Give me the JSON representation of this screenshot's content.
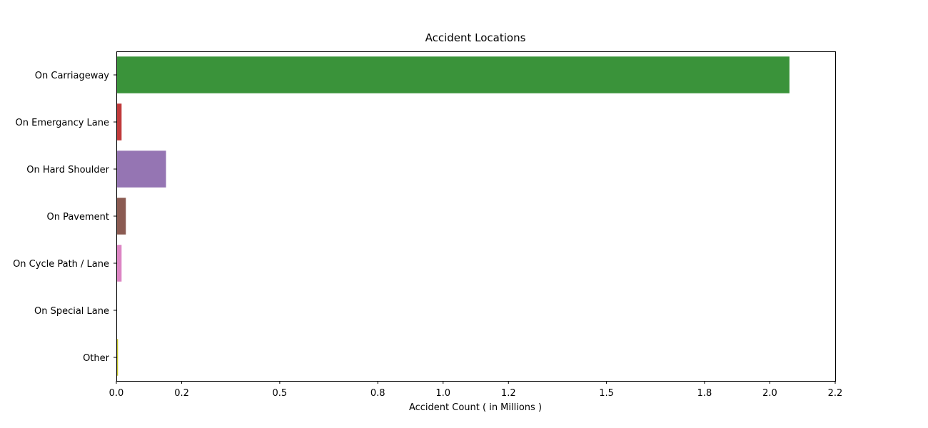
{
  "chart_data": {
    "type": "bar",
    "orientation": "horizontal",
    "title": "Accident Locations",
    "xlabel": "Accident Count ( in Millions )",
    "ylabel": "",
    "xlim": [
      0,
      2.2
    ],
    "x_ticks": [
      0.0,
      0.2,
      0.5,
      0.8,
      1.0,
      1.2,
      1.5,
      1.8,
      2.0,
      2.2
    ],
    "x_tick_labels": [
      "0.0",
      "0.2",
      "0.5",
      "0.8",
      "1.0",
      "1.2",
      "1.5",
      "1.8",
      "2.0",
      "2.2"
    ],
    "categories": [
      "On Carriageway",
      "On Emergancy Lane",
      "On Hard Shoulder",
      "On Pavement",
      "On Cycle Path / Lane",
      "On Special Lane",
      "Other"
    ],
    "values": [
      2.06,
      0.016,
      0.152,
      0.029,
      0.016,
      0.0005,
      0.005
    ],
    "colors": [
      "#3a933a",
      "#c03a3b",
      "#9575b3",
      "#8b5b52",
      "#dd86c4",
      "#7f7f7f",
      "#bcbd22"
    ],
    "grid": false,
    "legend": "none"
  }
}
